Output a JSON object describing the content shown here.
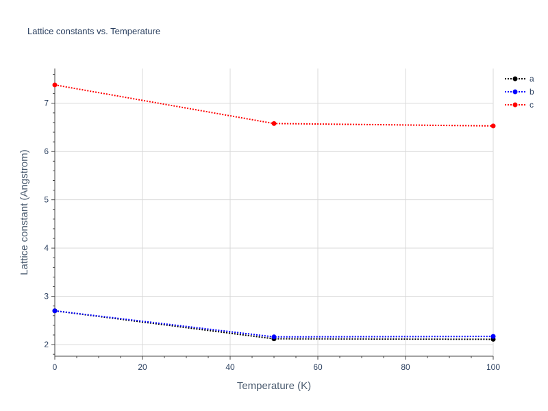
{
  "chart_data": {
    "type": "line",
    "title": "Lattice constants vs. Temperature",
    "xlabel": "Temperature (K)",
    "ylabel": "Lattice constant (Angstrom)",
    "x": [
      0,
      50,
      100
    ],
    "xlim": [
      0,
      100
    ],
    "ylim": [
      1.76,
      7.72
    ],
    "xticks": [
      0,
      20,
      40,
      60,
      80,
      100
    ],
    "yticks": [
      2,
      3,
      4,
      5,
      6,
      7
    ],
    "grid": true,
    "legend_position": "top-right",
    "line_style": "dotted",
    "series": [
      {
        "name": "a",
        "color": "#000000",
        "values": [
          2.7,
          2.12,
          2.11
        ]
      },
      {
        "name": "b",
        "color": "#0000ff",
        "values": [
          2.7,
          2.16,
          2.17
        ]
      },
      {
        "name": "c",
        "color": "#ff0000",
        "values": [
          7.38,
          6.58,
          6.53
        ]
      }
    ]
  }
}
